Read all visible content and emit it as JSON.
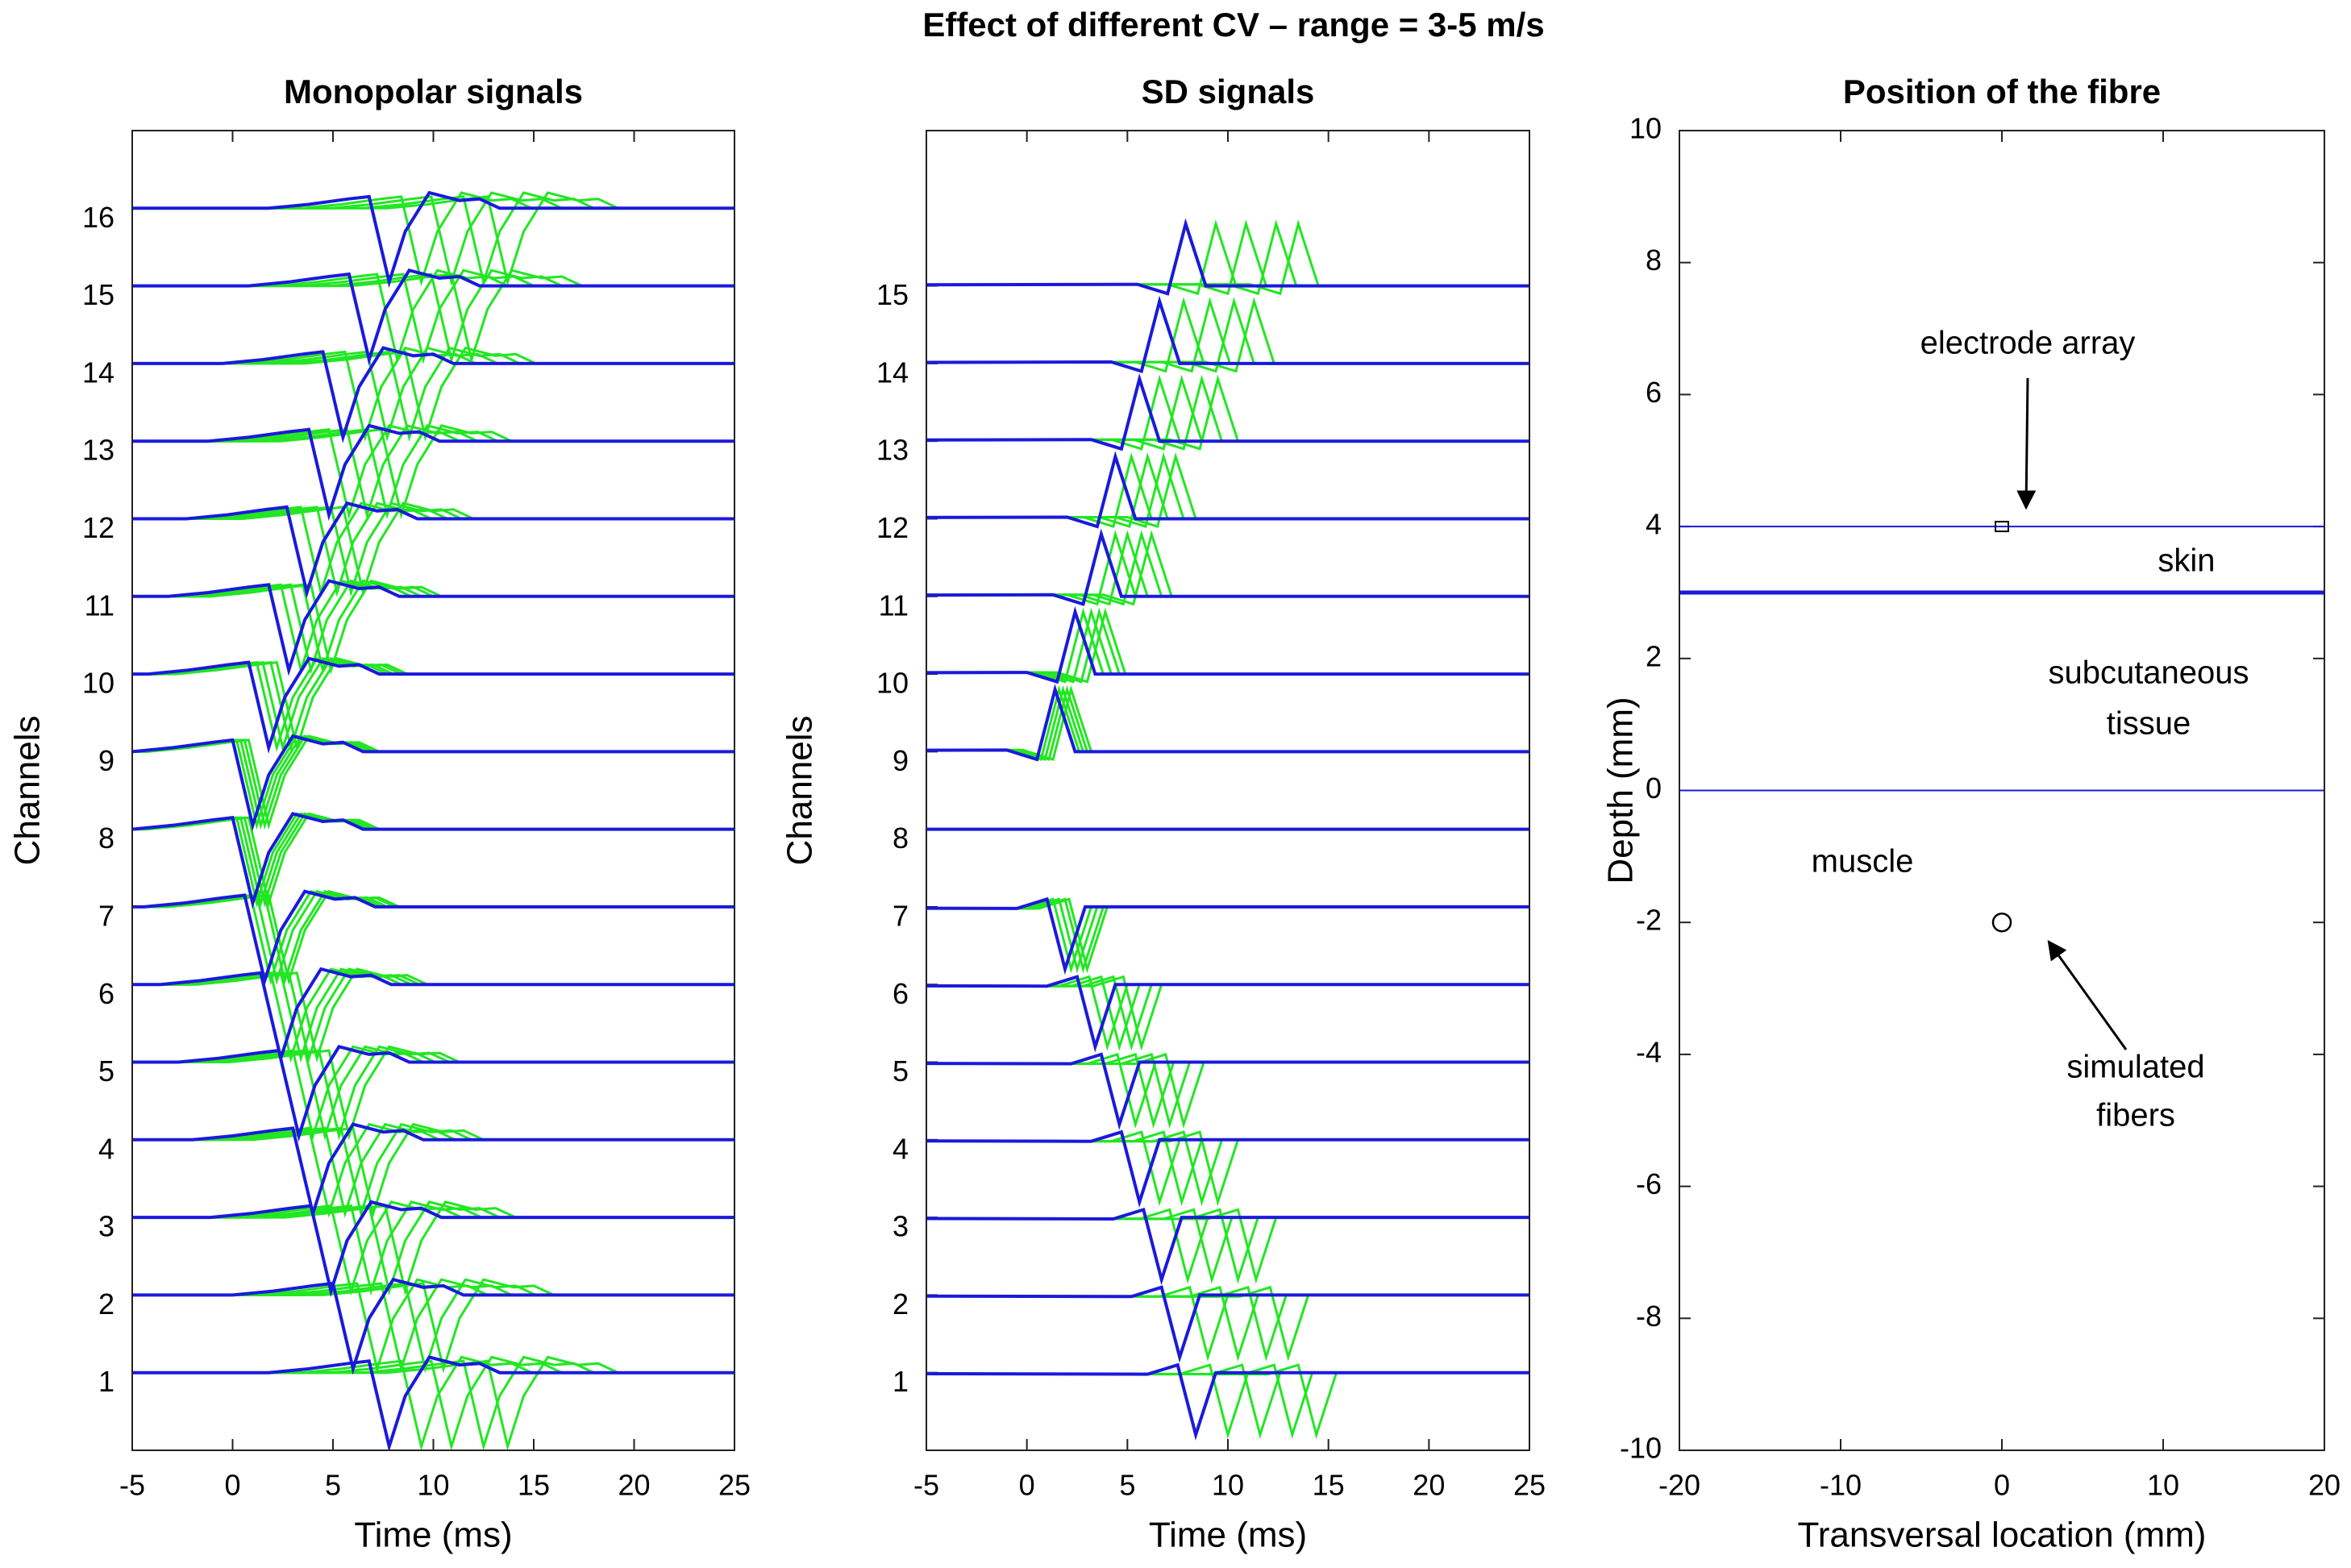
{
  "title": "Effect of different CV – range = 3-5 m/s",
  "chart_data": [
    {
      "type": "line",
      "title": "Monopolar signals",
      "xlabel": "Time (ms)",
      "ylabel": "Channels",
      "xlim": [
        -5,
        25
      ],
      "xticks": [
        -5,
        0,
        5,
        10,
        15,
        20,
        25
      ],
      "ylim": [
        0,
        17
      ],
      "yticks": [
        1,
        2,
        3,
        4,
        5,
        6,
        7,
        8,
        9,
        10,
        11,
        12,
        13,
        14,
        15,
        16
      ],
      "channels": [
        1,
        2,
        3,
        4,
        5,
        6,
        7,
        8,
        9,
        10,
        11,
        12,
        13,
        14,
        15,
        16
      ],
      "waveform": {
        "t": [
          -40,
          -6,
          -4,
          -2,
          -1,
          0,
          0.8,
          2,
          3.5,
          4.5,
          5.5,
          40
        ],
        "v": [
          0,
          0,
          0.05,
          0.12,
          0.15,
          -0.95,
          -0.3,
          0.2,
          0.1,
          0.12,
          0,
          0
        ]
      },
      "series": [
        {
          "color": "#22e622",
          "values": [
            13.7,
            10.5,
            8.6,
            7.0,
            5.8,
            4.2,
            2.8,
            1.8,
            1.8,
            3.2,
            4.9,
            6.5,
            8.4,
            9.6,
            11.9,
            13.7
          ]
        },
        {
          "color": "#22e622",
          "values": [
            12.5,
            9.6,
            7.8,
            6.4,
            5.3,
            3.8,
            2.6,
            1.6,
            1.6,
            2.9,
            4.5,
            5.9,
            7.7,
            8.8,
            10.9,
            12.5
          ]
        },
        {
          "color": "#22e622",
          "values": [
            10.9,
            8.4,
            6.9,
            5.6,
            4.6,
            3.4,
            2.2,
            1.4,
            1.4,
            2.5,
            3.9,
            5.2,
            6.7,
            7.7,
            9.5,
            10.9
          ]
        },
        {
          "color": "#22e622",
          "values": [
            9.4,
            7.2,
            5.9,
            4.8,
            4.0,
            2.9,
            1.9,
            1.2,
            1.2,
            2.2,
            3.4,
            4.4,
            5.8,
            6.6,
            8.2,
            9.4
          ]
        },
        {
          "color": "#1a1adc",
          "values": [
            7.8,
            6.0,
            4.9,
            4.0,
            3.3,
            2.4,
            1.6,
            1.0,
            1.0,
            1.8,
            2.8,
            3.7,
            4.8,
            5.5,
            6.8,
            7.8
          ]
        }
      ]
    },
    {
      "type": "line",
      "title": "SD signals",
      "xlabel": "Time (ms)",
      "ylabel": "Channels",
      "xlim": [
        -5,
        25
      ],
      "xticks": [
        -5,
        0,
        5,
        10,
        15,
        20,
        25
      ],
      "ylim": [
        0,
        17
      ],
      "yticks": [
        1,
        2,
        3,
        4,
        5,
        6,
        7,
        8,
        9,
        10,
        11,
        12,
        13,
        14,
        15
      ],
      "channels": [
        1,
        2,
        3,
        4,
        5,
        6,
        7,
        8,
        9,
        10,
        11,
        12,
        13,
        14,
        15
      ],
      "amplitudes": [
        -1,
        -1,
        -1,
        -1,
        -1,
        -1,
        -1,
        0,
        1,
        1,
        1,
        1,
        1,
        1,
        1
      ],
      "waveform": {
        "t": [
          -40,
          -2,
          -0.5,
          0.4,
          1.4,
          40
        ],
        "v": [
          0,
          0.02,
          -0.1,
          0.8,
          0,
          0
        ]
      },
      "series": [
        {
          "color": "#22e622",
          "values": [
            14.0,
            12.6,
            11.0,
            9.1,
            7.4,
            5.3,
            2.6,
            0.9,
            1.8,
            3.5,
            5.8,
            7.0,
            9.1,
            10.9,
            13.1
          ]
        },
        {
          "color": "#22e622",
          "values": [
            12.8,
            11.5,
            10.1,
            8.3,
            6.7,
            4.8,
            2.4,
            0.8,
            1.6,
            3.2,
            5.3,
            6.4,
            8.3,
            9.9,
            12.0
          ]
        },
        {
          "color": "#22e622",
          "values": [
            11.2,
            10.1,
            8.8,
            7.3,
            5.9,
            4.2,
            2.1,
            0.7,
            1.4,
            2.8,
            4.6,
            5.6,
            7.3,
            8.7,
            10.5
          ]
        },
        {
          "color": "#22e622",
          "values": [
            9.6,
            8.6,
            7.6,
            6.2,
            5.0,
            3.6,
            1.8,
            0.6,
            1.2,
            2.4,
            4.0,
            4.8,
            6.2,
            7.4,
            9.0
          ]
        },
        {
          "color": "#1a1adc",
          "values": [
            8.0,
            7.2,
            6.3,
            5.2,
            4.2,
            3.0,
            1.5,
            0.5,
            1.0,
            2.0,
            3.3,
            4.0,
            5.2,
            6.2,
            7.5
          ]
        }
      ]
    },
    {
      "type": "scatter",
      "title": "Position of the fibre",
      "xlabel": "Transversal location (mm)",
      "ylabel": "Depth (mm)",
      "xlim": [
        -20,
        20
      ],
      "xticks": [
        -20,
        -10,
        0,
        10,
        20
      ],
      "ylim": [
        -10,
        10
      ],
      "yticks": [
        -10,
        -8,
        -6,
        -4,
        -2,
        0,
        2,
        4,
        6,
        8,
        10
      ],
      "layers": [
        4,
        3,
        0
      ],
      "layer_widths": [
        2,
        5,
        2
      ],
      "color": "#1a1adc",
      "electrode": {
        "x": 0,
        "y": 4
      },
      "fibers": {
        "x": [
          0
        ],
        "y": [
          -2
        ]
      },
      "annotations": [
        [
          "electrode array"
        ],
        [
          "skin"
        ],
        [
          "subcutaneous",
          "tissue"
        ],
        [
          "muscle"
        ],
        [
          "simulated",
          "fibers"
        ]
      ]
    }
  ]
}
